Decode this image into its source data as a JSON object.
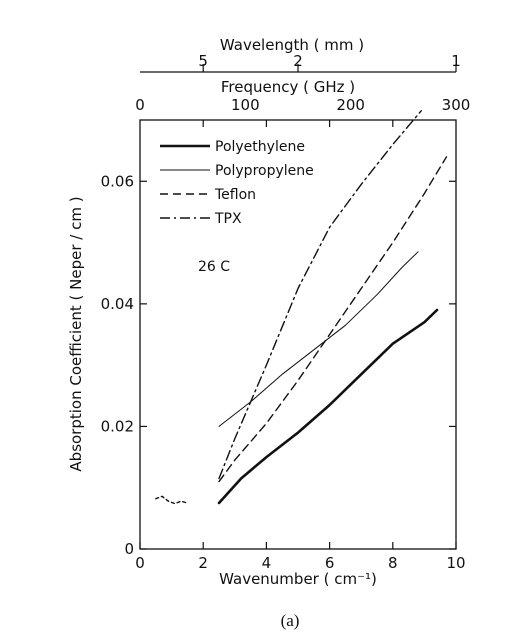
{
  "chart_data": {
    "type": "line",
    "caption": "(a)",
    "annotation": "26 C",
    "xlabel": "Wavenumber ( cm⁻¹)",
    "ylabel": "Absorption Coefficient ( Neper / cm )",
    "xlim": [
      0,
      10
    ],
    "ylim": [
      0,
      0.07
    ],
    "x_ticks": [
      0,
      2,
      4,
      6,
      8,
      10
    ],
    "y_ticks": [
      0,
      0.02,
      0.04,
      0.06
    ],
    "y_tick_labels": [
      "0",
      "0.02",
      "0.04",
      "0.06"
    ],
    "grid": false,
    "legend_position": "top-left",
    "top_axes": [
      {
        "label": "Frequency ( GHz )",
        "ticks": [
          {
            "label": "0",
            "value_ghz": 0
          },
          {
            "label": "100",
            "value_ghz": 100
          },
          {
            "label": "200",
            "value_ghz": 200
          },
          {
            "label": "300",
            "value_ghz": 300
          }
        ]
      },
      {
        "label": "Wavelength ( mm )",
        "ticks": [
          {
            "label": "5",
            "value_mm": 5
          },
          {
            "label": "2",
            "value_mm": 2
          },
          {
            "label": "1",
            "value_mm": 1
          }
        ]
      }
    ],
    "series": [
      {
        "name": "Polyethylene",
        "style": "solid-thick",
        "x": [
          2.5,
          3.2,
          4.0,
          5.0,
          6.0,
          7.0,
          8.0,
          9.0,
          9.4
        ],
        "y": [
          0.0075,
          0.0115,
          0.015,
          0.019,
          0.0235,
          0.0285,
          0.0335,
          0.037,
          0.039
        ]
      },
      {
        "name": "Polypropylene",
        "style": "solid-thin",
        "x": [
          2.5,
          3.5,
          4.5,
          5.5,
          6.5,
          7.5,
          8.3,
          8.8
        ],
        "y": [
          0.02,
          0.024,
          0.0285,
          0.0325,
          0.0365,
          0.0415,
          0.046,
          0.0485
        ]
      },
      {
        "name": "Teflon",
        "style": "dashed",
        "x": [
          2.5,
          3.0,
          4.0,
          5.0,
          6.0,
          7.0,
          8.0,
          9.0,
          9.7
        ],
        "y": [
          0.011,
          0.0145,
          0.0205,
          0.0275,
          0.035,
          0.0425,
          0.05,
          0.058,
          0.064
        ]
      },
      {
        "name": "TPX",
        "style": "dash-dot",
        "x": [
          2.5,
          3.0,
          4.0,
          5.0,
          6.0,
          7.0,
          8.0,
          8.9
        ],
        "y": [
          0.0115,
          0.018,
          0.03,
          0.0425,
          0.0525,
          0.0595,
          0.066,
          0.0715
        ]
      },
      {
        "name": "",
        "style": "short-dash",
        "x": [
          0.5,
          0.7,
          0.9,
          1.1,
          1.3,
          1.5
        ],
        "y": [
          0.0082,
          0.0086,
          0.0078,
          0.0074,
          0.0078,
          0.0075
        ]
      }
    ]
  }
}
